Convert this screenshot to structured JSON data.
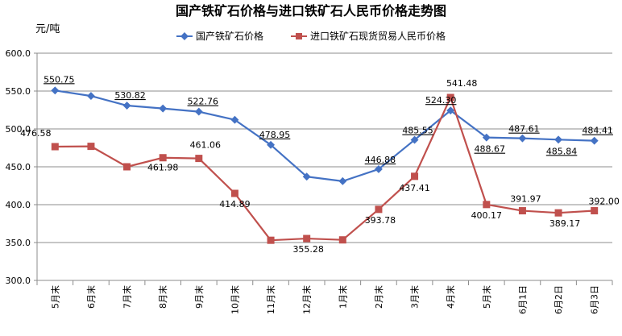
{
  "chart_data": {
    "type": "line",
    "title": "国产铁矿石价格与进口铁矿石人民币价格走势图",
    "ylabel": "元/吨",
    "xlabel": "",
    "ylim": [
      300,
      600
    ],
    "yticks": [
      "300.0",
      "350.0",
      "400.0",
      "450.0",
      "500.0",
      "550.0",
      "600.0"
    ],
    "grid": true,
    "legend_position": "top",
    "categories": [
      "5月末",
      "6月末",
      "7月末",
      "8月末",
      "9月末",
      "10月末",
      "11月末",
      "12月末",
      "1月末",
      "2月末",
      "3月末",
      "4月末",
      "5月末",
      "6月1日",
      "6月2日",
      "6月3日"
    ],
    "series": [
      {
        "name": "国产铁矿石价格",
        "color": "#4472C4",
        "marker": "diamond",
        "values": [
          550.75,
          543.5,
          530.82,
          527.0,
          522.76,
          512.0,
          478.95,
          437.0,
          431.0,
          446.88,
          485.55,
          524.3,
          488.67,
          487.61,
          485.84,
          484.41
        ],
        "labels": [
          "550.75",
          null,
          "530.82",
          null,
          "522.76",
          null,
          "478.95",
          null,
          null,
          "446.88",
          "485.55",
          "524.30",
          "488.67",
          "487.61",
          "485.84",
          "484.41"
        ]
      },
      {
        "name": "进口铁矿石现货贸易人民币价格",
        "color": "#C0504D",
        "marker": "square",
        "values": [
          476.58,
          477.0,
          450.0,
          461.98,
          461.06,
          414.89,
          353.0,
          355.28,
          353.5,
          393.78,
          437.41,
          541.48,
          400.17,
          391.97,
          389.17,
          392.0
        ],
        "labels": [
          "476.58",
          null,
          null,
          "461.98",
          "461.06",
          "414.89",
          null,
          "355.28",
          null,
          "393.78",
          "437.41",
          "541.48",
          "400.17",
          "391.97",
          "389.17",
          "392.00"
        ]
      }
    ]
  }
}
